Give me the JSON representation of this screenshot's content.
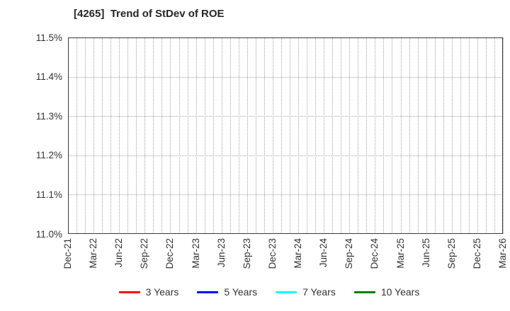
{
  "chart_data": {
    "type": "line",
    "title": "[4265]  Trend of StDev of ROE",
    "xlabel": "",
    "ylabel": "",
    "ylim": [
      11.0,
      11.5
    ],
    "y_tick_step": 0.1,
    "y_tick_labels": [
      "11.0%",
      "11.1%",
      "11.2%",
      "11.3%",
      "11.4%",
      "11.5%"
    ],
    "x_tick_labels": [
      "Dec-21",
      "Mar-22",
      "Jun-22",
      "Sep-22",
      "Dec-22",
      "Mar-23",
      "Jun-23",
      "Sep-23",
      "Dec-23",
      "Mar-24",
      "Jun-24",
      "Sep-24",
      "Dec-24",
      "Mar-25",
      "Jun-25",
      "Sep-25",
      "Dec-25",
      "Mar-26"
    ],
    "months_per_tick": 3,
    "grid": {
      "enabled": true,
      "style": "dotted",
      "vertical_spacing": "monthly",
      "horizontal_spacing": "0.1%"
    },
    "legend_position": "bottom",
    "series": [
      {
        "name": "3 Years",
        "color": "#ff0000",
        "x": [],
        "values": []
      },
      {
        "name": "5 Years",
        "color": "#0000ff",
        "x": [],
        "values": []
      },
      {
        "name": "7 Years",
        "color": "#00ffff",
        "x": [],
        "values": []
      },
      {
        "name": "10 Years",
        "color": "#008000",
        "x": [],
        "values": []
      }
    ]
  },
  "colors": {
    "background": "#ffffff",
    "frame": "#3a3a3a",
    "gridline": "#a3a3a3",
    "tick_label": "#333333",
    "title": "#262626"
  }
}
